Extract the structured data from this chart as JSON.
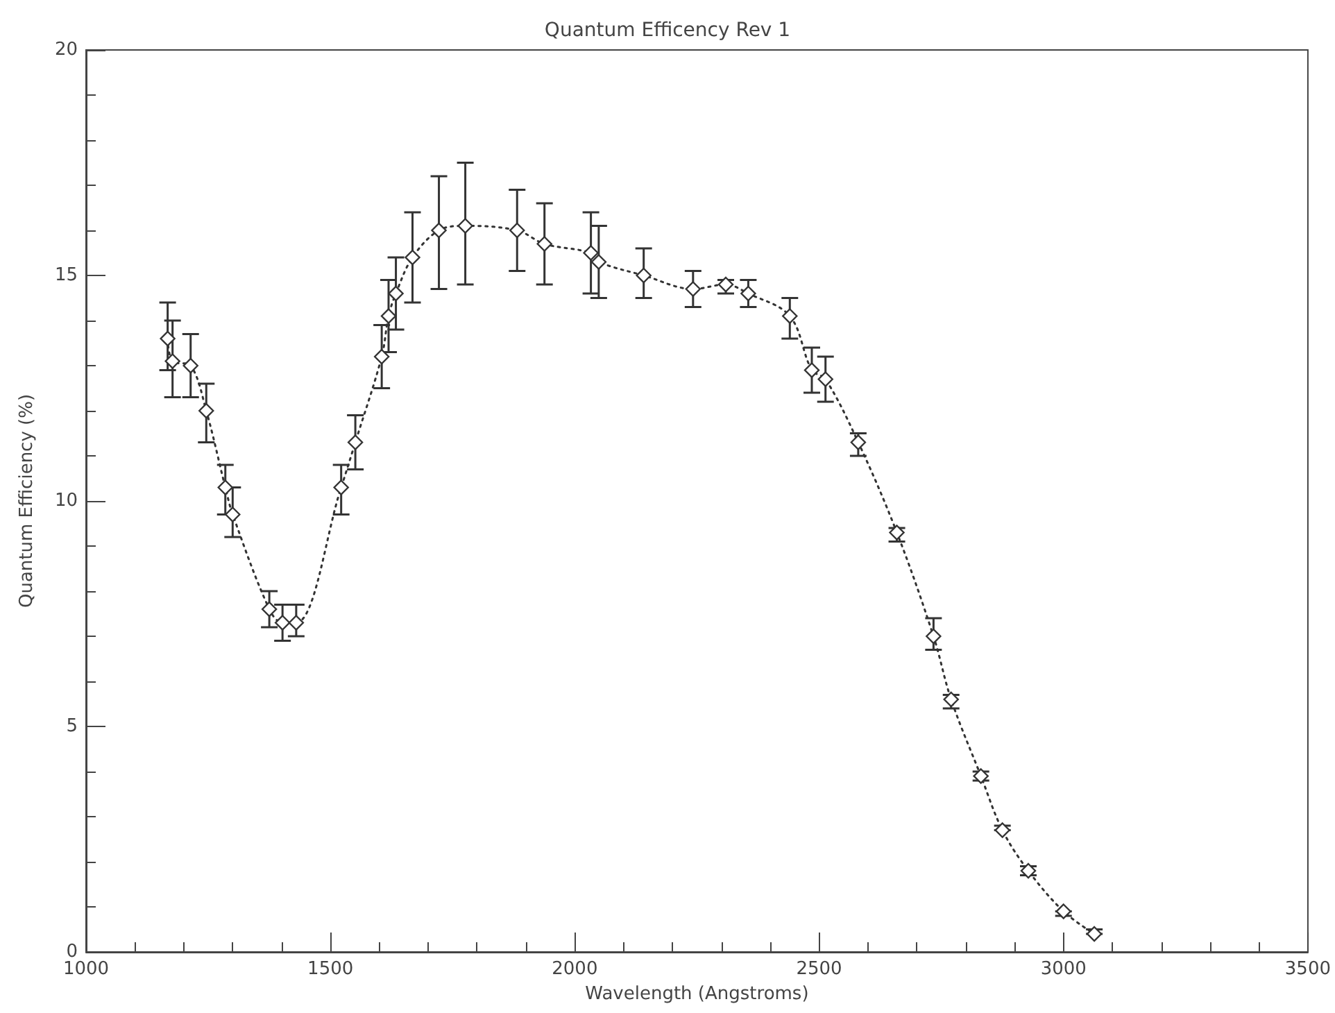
{
  "chart_data": {
    "type": "line",
    "title": "Quantum Efficency Rev 1",
    "xlabel": "Wavelength (Angstroms)",
    "ylabel": "Quantum Efficiency (%)",
    "x": [
      1167,
      1177,
      1214,
      1246,
      1285,
      1300,
      1375,
      1402,
      1430,
      1522,
      1551,
      1605,
      1619,
      1634,
      1668,
      1722,
      1776,
      1882,
      1938,
      2033,
      2049,
      2141,
      2242,
      2309,
      2355,
      2440,
      2485,
      2513,
      2580,
      2659,
      2734,
      2770,
      2831,
      2875,
      2928,
      3000,
      3063
    ],
    "series": [
      {
        "color": "#333333",
        "values": [
          13.6,
          13.1,
          13.0,
          12.0,
          10.3,
          9.7,
          7.6,
          7.3,
          7.3,
          10.3,
          11.3,
          13.2,
          14.1,
          14.6,
          15.4,
          16.0,
          16.1,
          16.0,
          15.7,
          15.5,
          15.3,
          15.0,
          14.7,
          14.8,
          14.6,
          14.1,
          12.9,
          12.7,
          11.3,
          9.3,
          7.0,
          5.6,
          3.9,
          2.7,
          1.8,
          0.9,
          0.4
        ],
        "errors": [
          [
            12.9,
            14.4
          ],
          [
            12.3,
            14.0
          ],
          [
            12.3,
            13.7
          ],
          [
            11.3,
            12.6
          ],
          [
            9.7,
            10.8
          ],
          [
            9.2,
            10.3
          ],
          [
            7.2,
            8.0
          ],
          [
            6.9,
            7.7
          ],
          [
            7.0,
            7.7
          ],
          [
            9.7,
            10.8
          ],
          [
            10.7,
            11.9
          ],
          [
            12.5,
            13.9
          ],
          [
            13.3,
            14.9
          ],
          [
            13.8,
            15.4
          ],
          [
            14.4,
            16.4
          ],
          [
            14.7,
            17.2
          ],
          [
            14.8,
            17.5
          ],
          [
            15.1,
            16.9
          ],
          [
            14.8,
            16.6
          ],
          [
            14.6,
            16.4
          ],
          [
            14.5,
            16.1
          ],
          [
            14.5,
            15.6
          ],
          [
            14.3,
            15.1
          ],
          [
            14.6,
            14.9
          ],
          [
            14.3,
            14.9
          ],
          [
            13.6,
            14.5
          ],
          [
            12.4,
            13.4
          ],
          [
            12.2,
            13.2
          ],
          [
            11.0,
            11.5
          ],
          [
            9.1,
            9.4
          ],
          [
            6.7,
            7.4
          ],
          [
            5.4,
            5.7
          ],
          [
            3.8,
            4.0
          ],
          [
            2.7,
            2.8
          ],
          [
            1.7,
            1.9
          ],
          [
            0.8,
            0.9
          ],
          [
            0.4,
            0.5
          ]
        ]
      }
    ],
    "xlim": [
      1000,
      3500
    ],
    "xticks": [
      1000,
      1500,
      2000,
      2500,
      3000,
      3500
    ],
    "ylim": [
      0,
      20
    ],
    "yticks": [
      0,
      5,
      10,
      15,
      20
    ],
    "marker": "diamond",
    "line_style": "dotted",
    "grid": false
  }
}
